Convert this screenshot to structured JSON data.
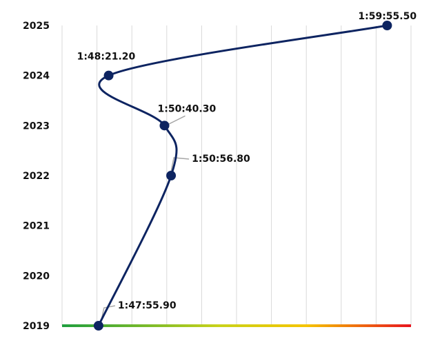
{
  "chart_data": {
    "type": "scatter",
    "title": "",
    "xlabel": "",
    "ylabel": "",
    "series": [
      {
        "points": [
          {
            "year": 2019,
            "time": "1:47:55.90",
            "seconds": 6475.9
          },
          {
            "year": 2022,
            "time": "1:50:56.80",
            "seconds": 6656.8
          },
          {
            "year": 2023,
            "time": "1:50:40.30",
            "seconds": 6640.3
          },
          {
            "year": 2024,
            "time": "1:48:21.20",
            "seconds": 6501.2
          },
          {
            "year": 2025,
            "time": "1:59:55.50",
            "seconds": 7195.5
          }
        ]
      }
    ],
    "y_ticks": [
      "2019",
      "2020",
      "2021",
      "2022",
      "2023",
      "2024",
      "2025"
    ],
    "ylim": [
      2019,
      2025
    ],
    "xlim": [
      6385,
      7255
    ],
    "smooth_line": true,
    "grid": "vertical",
    "legend": "none",
    "colors": {
      "line": "#0d2461",
      "marker": "#0d2461",
      "grid": "#d9d9d9",
      "leader": "#a6a6a6",
      "axis_gradient": [
        "#1e9e3e",
        "#c9d21a",
        "#f5c400",
        "#e8141e"
      ]
    }
  }
}
